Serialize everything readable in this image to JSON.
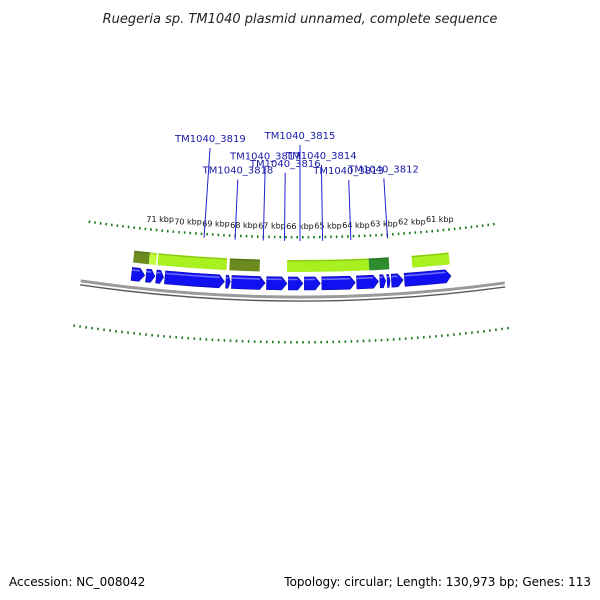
{
  "title": "Ruegeria sp. TM1040 plasmid unnamed, complete sequence",
  "footer": {
    "accession": "Accession: NC_008042",
    "topology": "Topology: circular; Length: 130,973 bp; Genes: 113"
  },
  "colors": {
    "gene": "#1010f0",
    "gene_highlight": "#6a6aff",
    "feature_light": "#a8f020",
    "feature_lime": "#c0ff40",
    "feature_olive": "#6b8a20",
    "feature_dark": "#2e8b2e",
    "ticks": "#1a7a1a",
    "backbone": "#888888",
    "label_line": "#2222cc"
  },
  "kbp_labels": [
    {
      "kbp": 71,
      "text": "71 kbp"
    },
    {
      "kbp": 70,
      "text": "70 kbp"
    },
    {
      "kbp": 69,
      "text": "69 kbp"
    },
    {
      "kbp": 68,
      "text": "68 kbp"
    },
    {
      "kbp": 67,
      "text": "67 kbp"
    },
    {
      "kbp": 66,
      "text": "66 kbp"
    },
    {
      "kbp": 65,
      "text": "65 kbp"
    },
    {
      "kbp": 64,
      "text": "64 kbp"
    },
    {
      "kbp": 63,
      "text": "63 kbp"
    },
    {
      "kbp": 62,
      "text": "62 kbp"
    },
    {
      "kbp": 61,
      "text": "61 kbp"
    }
  ],
  "gene_labels": [
    {
      "name": "TM1040_3819",
      "pos_kbp": 69.4
    },
    {
      "name": "TM1040_3818",
      "pos_kbp": 68.3
    },
    {
      "name": "TM1040_3817",
      "pos_kbp": 67.3
    },
    {
      "name": "TM1040_3816",
      "pos_kbp": 66.55
    },
    {
      "name": "TM1040_3815",
      "pos_kbp": 66.0
    },
    {
      "name": "TM1040_3814",
      "pos_kbp": 65.2
    },
    {
      "name": "TM1040_3813",
      "pos_kbp": 64.2
    },
    {
      "name": "TM1040_3812",
      "pos_kbp": 62.9
    }
  ],
  "genes": [
    {
      "start": 71.8,
      "end": 71.35
    },
    {
      "start": 71.3,
      "end": 71.0
    },
    {
      "start": 70.95,
      "end": 70.7
    },
    {
      "start": 70.65,
      "end": 68.6
    },
    {
      "start": 68.55,
      "end": 68.4
    },
    {
      "start": 68.35,
      "end": 67.2
    },
    {
      "start": 67.15,
      "end": 66.45
    },
    {
      "start": 66.4,
      "end": 65.9
    },
    {
      "start": 65.85,
      "end": 65.3
    },
    {
      "start": 65.25,
      "end": 64.1
    },
    {
      "start": 64.05,
      "end": 63.3
    },
    {
      "start": 63.25,
      "end": 63.05
    },
    {
      "start": 63.0,
      "end": 62.9
    },
    {
      "start": 62.85,
      "end": 62.45
    },
    {
      "start": 62.4,
      "end": 60.8
    }
  ],
  "features": [
    {
      "start": 71.8,
      "end": 71.25,
      "color": "feature_olive"
    },
    {
      "start": 71.25,
      "end": 71.0,
      "color": "feature_lime"
    },
    {
      "start": 70.95,
      "end": 68.55,
      "color": "feature_light"
    },
    {
      "start": 68.45,
      "end": 67.4,
      "color": "feature_olive"
    },
    {
      "start": 66.45,
      "end": 63.6,
      "color": "feature_light"
    },
    {
      "start": 63.6,
      "end": 62.9,
      "color": "feature_dark"
    },
    {
      "start": 62.1,
      "end": 60.8,
      "color": "feature_light"
    }
  ]
}
